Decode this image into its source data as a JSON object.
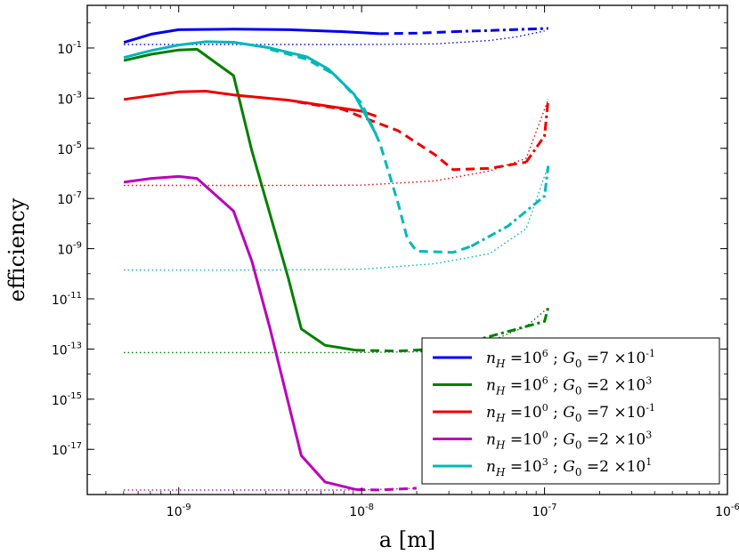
{
  "chart_data": {
    "type": "line",
    "title": "",
    "xlabel": "a [m]",
    "ylabel": "efficiency",
    "xscale": "log",
    "yscale": "log",
    "xlim_exp": [
      -9.5,
      -6
    ],
    "ylim_exp": [
      -18.8,
      0.7
    ],
    "x_ticks": [
      {
        "base": "10",
        "exp": "-9",
        "value": -9
      },
      {
        "base": "10",
        "exp": "-8",
        "value": -8
      },
      {
        "base": "10",
        "exp": "-7",
        "value": -7
      },
      {
        "base": "10",
        "exp": "-6",
        "value": -6
      }
    ],
    "y_ticks": [
      {
        "base": "10",
        "exp": "-1",
        "value": -1
      },
      {
        "base": "10",
        "exp": "-3",
        "value": -3
      },
      {
        "base": "10",
        "exp": "-5",
        "value": -5
      },
      {
        "base": "10",
        "exp": "-7",
        "value": -7
      },
      {
        "base": "10",
        "exp": "-9",
        "value": -9
      },
      {
        "base": "10",
        "exp": "-11",
        "value": -11
      },
      {
        "base": "10",
        "exp": "-13",
        "value": -13
      },
      {
        "base": "10",
        "exp": "-15",
        "value": -15
      },
      {
        "base": "10",
        "exp": "-17",
        "value": -17
      }
    ],
    "legend_position": "bottom-right",
    "series": [
      {
        "name": "nH=10^6 ; G0=7×10^-1",
        "color": "#0000ee",
        "nh_exp": "6",
        "g0_mant": "7",
        "g0_exp": "-1",
        "solid": [
          [
            -9.3,
            -0.78
          ],
          [
            -9.15,
            -0.45
          ],
          [
            -9.0,
            -0.27
          ],
          [
            -8.7,
            -0.25
          ],
          [
            -8.4,
            -0.27
          ],
          [
            -8.1,
            -0.35
          ],
          [
            -7.9,
            -0.43
          ]
        ],
        "dashed": [
          [
            -7.9,
            -0.43
          ],
          [
            -7.7,
            -0.41
          ],
          [
            -7.5,
            -0.35
          ]
        ],
        "dashdot": [
          [
            -7.5,
            -0.35
          ],
          [
            -7.2,
            -0.28
          ],
          [
            -6.98,
            -0.22
          ]
        ],
        "dotted": [
          [
            -9.3,
            -0.86
          ],
          [
            -8.5,
            -0.86
          ],
          [
            -8.0,
            -0.86
          ],
          [
            -7.6,
            -0.84
          ],
          [
            -7.3,
            -0.7
          ],
          [
            -7.15,
            -0.55
          ],
          [
            -7.0,
            -0.32
          ]
        ]
      },
      {
        "name": "nH=10^6 ; G0=2×10^3",
        "color": "#008000",
        "nh_exp": "6",
        "g0_mant": "2",
        "g0_exp": "3",
        "solid": [
          [
            -9.3,
            -1.5
          ],
          [
            -9.15,
            -1.25
          ],
          [
            -9.0,
            -1.08
          ],
          [
            -8.9,
            -1.05
          ],
          [
            -8.7,
            -2.1
          ],
          [
            -8.6,
            -5.1
          ],
          [
            -8.4,
            -10.2
          ],
          [
            -8.33,
            -12.2
          ],
          [
            -8.2,
            -12.85
          ],
          [
            -8.03,
            -13.05
          ]
        ],
        "dashed": [
          [
            -8.03,
            -13.05
          ],
          [
            -7.8,
            -13.08
          ],
          [
            -7.6,
            -13.0
          ],
          [
            -7.5,
            -12.9
          ]
        ],
        "dashdot": [
          [
            -7.5,
            -12.9
          ],
          [
            -7.2,
            -12.3
          ],
          [
            -7.0,
            -11.9
          ],
          [
            -6.98,
            -11.35
          ]
        ],
        "dotted": [
          [
            -9.3,
            -13.14
          ],
          [
            -8.5,
            -13.14
          ],
          [
            -8.0,
            -13.14
          ],
          [
            -7.6,
            -13.1
          ],
          [
            -7.3,
            -12.7
          ],
          [
            -7.1,
            -12.1
          ],
          [
            -6.98,
            -11.35
          ]
        ]
      },
      {
        "name": "nH=10^0 ; G0=7×10^-1",
        "color": "#ee0000",
        "nh_exp": "0",
        "g0_mant": "7",
        "g0_exp": "-1",
        "solid": [
          [
            -9.3,
            -3.05
          ],
          [
            -9.0,
            -2.75
          ],
          [
            -8.85,
            -2.72
          ],
          [
            -8.7,
            -2.87
          ],
          [
            -8.4,
            -3.08
          ],
          [
            -8.2,
            -3.3
          ],
          [
            -8.0,
            -3.52
          ],
          [
            -7.92,
            -3.72
          ]
        ],
        "dashed": [
          [
            -8.35,
            -3.15
          ],
          [
            -8.1,
            -3.45
          ],
          [
            -8.0,
            -3.75
          ],
          [
            -7.8,
            -4.3
          ],
          [
            -7.6,
            -5.25
          ],
          [
            -7.5,
            -5.85
          ],
          [
            -7.3,
            -5.8
          ],
          [
            -7.1,
            -5.55
          ]
        ],
        "dashdot": [
          [
            -7.1,
            -5.55
          ],
          [
            -7.0,
            -4.5
          ],
          [
            -6.98,
            -3.05
          ]
        ],
        "dotted": [
          [
            -9.3,
            -6.48
          ],
          [
            -8.5,
            -6.48
          ],
          [
            -8.0,
            -6.47
          ],
          [
            -7.6,
            -6.3
          ],
          [
            -7.3,
            -5.9
          ],
          [
            -7.1,
            -5.4
          ],
          [
            -6.98,
            -3.05
          ]
        ]
      },
      {
        "name": "nH=10^0 ; G0=2×10^3",
        "color": "#bb00bb",
        "nh_exp": "0",
        "g0_mant": "2",
        "g0_exp": "3",
        "solid": [
          [
            -9.3,
            -6.35
          ],
          [
            -9.15,
            -6.2
          ],
          [
            -9.0,
            -6.12
          ],
          [
            -8.9,
            -6.2
          ],
          [
            -8.7,
            -7.5
          ],
          [
            -8.6,
            -9.5
          ],
          [
            -8.5,
            -12.2
          ],
          [
            -8.33,
            -17.25
          ],
          [
            -8.2,
            -18.3
          ],
          [
            -8.03,
            -18.6
          ]
        ],
        "dashed": [
          [
            -8.03,
            -18.6
          ],
          [
            -7.9,
            -18.62
          ],
          [
            -7.7,
            -18.55
          ]
        ],
        "dashdot": [],
        "dotted": [
          [
            -9.3,
            -18.62
          ],
          [
            -8.5,
            -18.62
          ],
          [
            -8.0,
            -18.62
          ],
          [
            -7.7,
            -18.55
          ]
        ]
      },
      {
        "name": "nH=10^3 ; G0=2×10^1",
        "color": "#00b8b8",
        "nh_exp": "3",
        "g0_mant": "2",
        "g0_exp": "1",
        "solid": [
          [
            -9.3,
            -1.38
          ],
          [
            -9.15,
            -1.1
          ],
          [
            -9.0,
            -0.88
          ],
          [
            -8.85,
            -0.75
          ],
          [
            -8.7,
            -0.77
          ],
          [
            -8.5,
            -1.0
          ],
          [
            -8.3,
            -1.35
          ],
          [
            -8.18,
            -1.85
          ],
          [
            -8.04,
            -2.85
          ],
          [
            -7.92,
            -4.45
          ]
        ],
        "dashed": [
          [
            -8.5,
            -1.05
          ],
          [
            -8.3,
            -1.45
          ],
          [
            -8.15,
            -2.05
          ],
          [
            -8.0,
            -3.2
          ],
          [
            -7.9,
            -4.8
          ],
          [
            -7.8,
            -7.2
          ],
          [
            -7.75,
            -8.6
          ],
          [
            -7.7,
            -9.1
          ],
          [
            -7.5,
            -9.15
          ],
          [
            -7.4,
            -8.9
          ]
        ],
        "dashdot": [
          [
            -7.4,
            -8.9
          ],
          [
            -7.2,
            -8.1
          ],
          [
            -7.0,
            -6.9
          ],
          [
            -6.98,
            -5.7
          ]
        ],
        "dotted": [
          [
            -9.3,
            -9.85
          ],
          [
            -8.5,
            -9.85
          ],
          [
            -8.0,
            -9.82
          ],
          [
            -7.6,
            -9.6
          ],
          [
            -7.3,
            -9.2
          ],
          [
            -7.1,
            -8.2
          ],
          [
            -6.98,
            -5.7
          ]
        ]
      }
    ]
  }
}
